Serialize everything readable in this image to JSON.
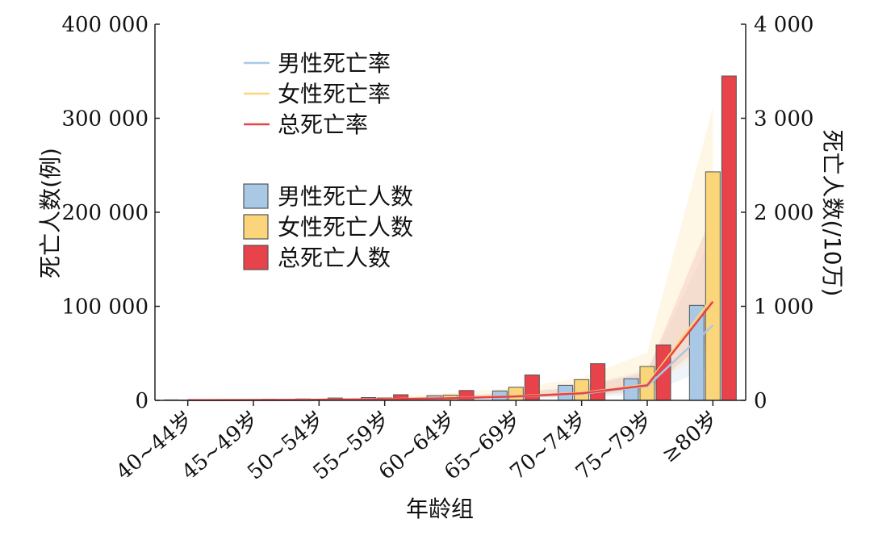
{
  "chart_data": {
    "type": "bar",
    "categories": [
      "40~44岁",
      "45~49岁",
      "50~54岁",
      "55~59岁",
      "60~64岁",
      "65~69岁",
      "70~74岁",
      "75~79岁",
      "≥80岁"
    ],
    "xlabel": "年龄组",
    "ylabel_left": "死亡人数(例)",
    "ylabel_right": "死亡人数(/10万)",
    "ylim_left": [
      0,
      400000
    ],
    "ylim_right": [
      0,
      4000
    ],
    "yticks_left": [
      "0",
      "100 000",
      "200 000",
      "300 000",
      "400 000"
    ],
    "yticks_right": [
      "0",
      "1 000",
      "2 000",
      "3 000",
      "4 000"
    ],
    "bar_series": [
      {
        "name": "男性死亡人数",
        "color": "#a9c8e6",
        "values": [
          500,
          800,
          1500,
          3000,
          5000,
          10000,
          16000,
          23000,
          101000
        ]
      },
      {
        "name": "女性死亡人数",
        "color": "#fad57a",
        "values": [
          300,
          500,
          1000,
          2500,
          5500,
          14000,
          22000,
          36000,
          243000
        ]
      },
      {
        "name": "总死亡人数",
        "color": "#e8424a",
        "values": [
          800,
          1300,
          2500,
          6000,
          10500,
          27000,
          39000,
          59000,
          345000
        ]
      }
    ],
    "line_series": [
      {
        "name": "男性死亡率",
        "color": "#a9c8e6",
        "values": [
          2,
          3,
          5,
          10,
          20,
          40,
          70,
          150,
          800
        ]
      },
      {
        "name": "女性死亡率",
        "color": "#fad57a",
        "values": [
          3,
          4,
          7,
          13,
          26,
          45,
          80,
          170,
          1100
        ]
      },
      {
        "name": "总死亡率",
        "color": "#e8424a",
        "values": [
          2,
          3,
          6,
          12,
          22,
          42,
          75,
          160,
          1050
        ]
      }
    ],
    "legend_placement": "top-left",
    "grid": false
  }
}
